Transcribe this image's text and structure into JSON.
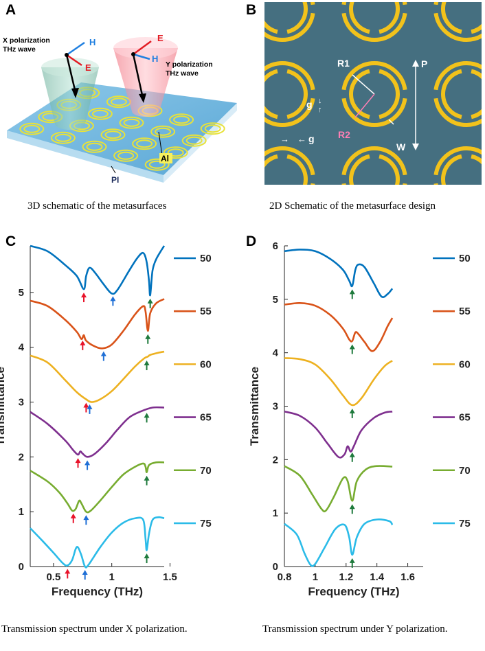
{
  "panels": {
    "A": {
      "letter": "A",
      "x_wave_label_line1": "X polarization",
      "x_wave_label_line2": "THz wave",
      "y_wave_label_line1": "Y polarization",
      "y_wave_label_line2": "THz wave",
      "h_label": "H",
      "e_label": "E",
      "al_label": "Al",
      "pi_label": "PI",
      "caption": "3D schematic of the metasurfaces"
    },
    "B": {
      "letter": "B",
      "r1_label": "R1",
      "r2_label": "R2",
      "p_label": "P",
      "g_label": "g",
      "w_label": "W",
      "caption": "2D Schematic of the metasurface design"
    },
    "C": {
      "letter": "C",
      "caption": "Transmission spectrum under X polarization."
    },
    "D": {
      "letter": "D",
      "caption": "Transmission spectrum under Y polarization."
    }
  },
  "colors": {
    "s50": "#0072bd",
    "s55": "#d95319",
    "s60": "#edb120",
    "s65": "#7e2f8e",
    "s70": "#77ac30",
    "s75": "#2bbbe8",
    "arrow_red": "#e8132a",
    "arrow_blue": "#1f6fd6",
    "arrow_green": "#1e7a3c",
    "metasurface_bg": "#456f80",
    "ring": "#f2c21b"
  },
  "chart_data": [
    {
      "type": "line",
      "panel": "C",
      "xlabel": "Frequency (THz)",
      "ylabel": "Transmittance",
      "xlim": [
        0.3,
        1.45
      ],
      "ylim": [
        0,
        5.85
      ],
      "xticks": [
        0.5,
        1,
        1.5
      ],
      "xtick_labels": [
        "0.5",
        "1",
        "1.5"
      ],
      "yticks": [
        0,
        1,
        2,
        3,
        4,
        5
      ],
      "ytick_labels": [
        "0",
        "1",
        "2",
        "3",
        "4",
        "5"
      ],
      "series": [
        {
          "name": "50",
          "color": "#0072bd",
          "points": [
            [
              0.3,
              5.85
            ],
            [
              0.45,
              5.75
            ],
            [
              0.6,
              5.5
            ],
            [
              0.7,
              5.3
            ],
            [
              0.76,
              5.06
            ],
            [
              0.78,
              5.3
            ],
            [
              0.81,
              5.45
            ],
            [
              0.86,
              5.35
            ],
            [
              0.93,
              5.15
            ],
            [
              1.0,
              4.98
            ],
            [
              1.05,
              5.05
            ],
            [
              1.15,
              5.4
            ],
            [
              1.22,
              5.63
            ],
            [
              1.27,
              5.72
            ],
            [
              1.3,
              5.55
            ],
            [
              1.32,
              5.2
            ],
            [
              1.33,
              4.95
            ],
            [
              1.35,
              5.4
            ],
            [
              1.38,
              5.6
            ],
            [
              1.42,
              5.75
            ],
            [
              1.45,
              5.85
            ]
          ],
          "arrows": [
            {
              "x": 0.76,
              "color": "red"
            },
            {
              "x": 1.01,
              "color": "blue"
            },
            {
              "x": 1.33,
              "color": "green"
            }
          ]
        },
        {
          "name": "55",
          "color": "#d95319",
          "points": [
            [
              0.3,
              4.85
            ],
            [
              0.45,
              4.75
            ],
            [
              0.6,
              4.5
            ],
            [
              0.7,
              4.28
            ],
            [
              0.74,
              4.15
            ],
            [
              0.76,
              4.22
            ],
            [
              0.78,
              4.12
            ],
            [
              0.85,
              4.02
            ],
            [
              0.92,
              3.98
            ],
            [
              1.0,
              4.05
            ],
            [
              1.1,
              4.3
            ],
            [
              1.2,
              4.6
            ],
            [
              1.27,
              4.75
            ],
            [
              1.29,
              4.65
            ],
            [
              1.31,
              4.3
            ],
            [
              1.33,
              4.62
            ],
            [
              1.38,
              4.8
            ],
            [
              1.45,
              4.88
            ]
          ],
          "arrows": [
            {
              "x": 0.75,
              "color": "red"
            },
            {
              "x": 0.93,
              "color": "blue"
            },
            {
              "x": 1.31,
              "color": "green"
            }
          ]
        },
        {
          "name": "60",
          "color": "#edb120",
          "points": [
            [
              0.3,
              3.85
            ],
            [
              0.45,
              3.72
            ],
            [
              0.6,
              3.4
            ],
            [
              0.7,
              3.18
            ],
            [
              0.78,
              3.05
            ],
            [
              0.83,
              3.0
            ],
            [
              0.9,
              3.05
            ],
            [
              1.0,
              3.2
            ],
            [
              1.1,
              3.42
            ],
            [
              1.2,
              3.65
            ],
            [
              1.28,
              3.8
            ],
            [
              1.31,
              3.83
            ],
            [
              1.33,
              3.86
            ],
            [
              1.4,
              3.9
            ],
            [
              1.45,
              3.92
            ]
          ],
          "arrows": [
            {
              "x": 0.78,
              "color": "red"
            },
            {
              "x": 0.81,
              "color": "blue"
            },
            {
              "x": 1.3,
              "color": "green"
            }
          ]
        },
        {
          "name": "65",
          "color": "#7e2f8e",
          "points": [
            [
              0.3,
              2.82
            ],
            [
              0.45,
              2.6
            ],
            [
              0.6,
              2.3
            ],
            [
              0.67,
              2.12
            ],
            [
              0.71,
              2.04
            ],
            [
              0.73,
              2.1
            ],
            [
              0.75,
              2.06
            ],
            [
              0.79,
              2.0
            ],
            [
              0.85,
              2.05
            ],
            [
              0.95,
              2.25
            ],
            [
              1.05,
              2.5
            ],
            [
              1.15,
              2.72
            ],
            [
              1.25,
              2.83
            ],
            [
              1.35,
              2.9
            ],
            [
              1.45,
              2.9
            ]
          ],
          "arrows": [
            {
              "x": 0.71,
              "color": "red"
            },
            {
              "x": 0.79,
              "color": "blue"
            },
            {
              "x": 1.3,
              "color": "green"
            }
          ]
        },
        {
          "name": "70",
          "color": "#77ac30",
          "points": [
            [
              0.3,
              1.75
            ],
            [
              0.45,
              1.55
            ],
            [
              0.55,
              1.35
            ],
            [
              0.62,
              1.15
            ],
            [
              0.66,
              1.02
            ],
            [
              0.69,
              1.05
            ],
            [
              0.72,
              1.2
            ],
            [
              0.74,
              1.15
            ],
            [
              0.78,
              1.0
            ],
            [
              0.82,
              1.02
            ],
            [
              0.9,
              1.2
            ],
            [
              1.0,
              1.45
            ],
            [
              1.1,
              1.68
            ],
            [
              1.2,
              1.82
            ],
            [
              1.27,
              1.88
            ],
            [
              1.29,
              1.82
            ],
            [
              1.3,
              1.72
            ],
            [
              1.32,
              1.85
            ],
            [
              1.38,
              1.9
            ],
            [
              1.45,
              1.9
            ]
          ],
          "arrows": [
            {
              "x": 0.67,
              "color": "red"
            },
            {
              "x": 0.78,
              "color": "blue"
            },
            {
              "x": 1.3,
              "color": "green"
            }
          ]
        },
        {
          "name": "75",
          "color": "#2bbbe8",
          "points": [
            [
              0.3,
              0.7
            ],
            [
              0.4,
              0.48
            ],
            [
              0.5,
              0.25
            ],
            [
              0.58,
              0.06
            ],
            [
              0.62,
              0.02
            ],
            [
              0.66,
              0.12
            ],
            [
              0.69,
              0.32
            ],
            [
              0.71,
              0.35
            ],
            [
              0.74,
              0.2
            ],
            [
              0.77,
              0.0
            ],
            [
              0.8,
              0.03
            ],
            [
              0.9,
              0.35
            ],
            [
              1.0,
              0.62
            ],
            [
              1.1,
              0.8
            ],
            [
              1.2,
              0.88
            ],
            [
              1.27,
              0.85
            ],
            [
              1.29,
              0.5
            ],
            [
              1.3,
              0.3
            ],
            [
              1.32,
              0.6
            ],
            [
              1.35,
              0.85
            ],
            [
              1.4,
              0.9
            ],
            [
              1.45,
              0.88
            ]
          ],
          "arrows": [
            {
              "x": 0.62,
              "color": "red"
            },
            {
              "x": 0.77,
              "color": "blue"
            },
            {
              "x": 1.3,
              "color": "green"
            }
          ]
        }
      ]
    },
    {
      "type": "line",
      "panel": "D",
      "xlabel": "Frequency (THz)",
      "ylabel": "Transmittance",
      "xlim": [
        0.8,
        1.7
      ],
      "ylim": [
        0,
        6
      ],
      "xticks": [
        0.8,
        1.0,
        1.2,
        1.4,
        1.6
      ],
      "xtick_labels": [
        "0.8",
        "1",
        "1.2",
        "1.4",
        "1.6"
      ],
      "yticks": [
        0,
        1,
        2,
        3,
        4,
        5,
        6
      ],
      "ytick_labels": [
        "0",
        "1",
        "2",
        "3",
        "4",
        "5",
        "6"
      ],
      "series": [
        {
          "name": "50",
          "color": "#0072bd",
          "points": [
            [
              0.8,
              5.9
            ],
            [
              0.9,
              5.93
            ],
            [
              1.0,
              5.9
            ],
            [
              1.1,
              5.75
            ],
            [
              1.18,
              5.55
            ],
            [
              1.22,
              5.35
            ],
            [
              1.24,
              5.25
            ],
            [
              1.26,
              5.55
            ],
            [
              1.28,
              5.65
            ],
            [
              1.32,
              5.6
            ],
            [
              1.38,
              5.3
            ],
            [
              1.43,
              5.05
            ],
            [
              1.47,
              5.1
            ],
            [
              1.5,
              5.2
            ]
          ],
          "arrows": [
            {
              "x": 1.24,
              "color": "green"
            }
          ]
        },
        {
          "name": "55",
          "color": "#d95319",
          "points": [
            [
              0.8,
              4.9
            ],
            [
              0.9,
              4.93
            ],
            [
              1.0,
              4.88
            ],
            [
              1.1,
              4.7
            ],
            [
              1.18,
              4.45
            ],
            [
              1.22,
              4.25
            ],
            [
              1.24,
              4.22
            ],
            [
              1.26,
              4.38
            ],
            [
              1.28,
              4.35
            ],
            [
              1.32,
              4.2
            ],
            [
              1.37,
              4.03
            ],
            [
              1.42,
              4.2
            ],
            [
              1.47,
              4.5
            ],
            [
              1.5,
              4.65
            ]
          ],
          "arrows": [
            {
              "x": 1.24,
              "color": "green"
            }
          ]
        },
        {
          "name": "60",
          "color": "#edb120",
          "points": [
            [
              0.8,
              3.9
            ],
            [
              0.9,
              3.88
            ],
            [
              1.0,
              3.78
            ],
            [
              1.1,
              3.5
            ],
            [
              1.18,
              3.2
            ],
            [
              1.24,
              3.02
            ],
            [
              1.3,
              3.15
            ],
            [
              1.38,
              3.5
            ],
            [
              1.45,
              3.75
            ],
            [
              1.5,
              3.85
            ]
          ],
          "arrows": [
            {
              "x": 1.24,
              "color": "green"
            }
          ]
        },
        {
          "name": "65",
          "color": "#7e2f8e",
          "points": [
            [
              0.8,
              2.9
            ],
            [
              0.9,
              2.82
            ],
            [
              1.0,
              2.6
            ],
            [
              1.08,
              2.3
            ],
            [
              1.15,
              2.05
            ],
            [
              1.19,
              2.1
            ],
            [
              1.21,
              2.25
            ],
            [
              1.23,
              2.15
            ],
            [
              1.25,
              2.25
            ],
            [
              1.3,
              2.55
            ],
            [
              1.38,
              2.78
            ],
            [
              1.45,
              2.88
            ],
            [
              1.5,
              2.9
            ]
          ],
          "arrows": [
            {
              "x": 1.24,
              "color": "green"
            }
          ]
        },
        {
          "name": "70",
          "color": "#77ac30",
          "points": [
            [
              0.8,
              1.88
            ],
            [
              0.9,
              1.7
            ],
            [
              0.98,
              1.35
            ],
            [
              1.04,
              1.08
            ],
            [
              1.07,
              1.05
            ],
            [
              1.12,
              1.3
            ],
            [
              1.18,
              1.65
            ],
            [
              1.21,
              1.6
            ],
            [
              1.24,
              1.23
            ],
            [
              1.27,
              1.6
            ],
            [
              1.33,
              1.82
            ],
            [
              1.4,
              1.88
            ],
            [
              1.5,
              1.87
            ]
          ],
          "arrows": [
            {
              "x": 1.24,
              "color": "green"
            }
          ]
        },
        {
          "name": "75",
          "color": "#2bbbe8",
          "points": [
            [
              0.8,
              0.8
            ],
            [
              0.88,
              0.6
            ],
            [
              0.93,
              0.25
            ],
            [
              0.97,
              0.03
            ],
            [
              1.0,
              0.05
            ],
            [
              1.06,
              0.35
            ],
            [
              1.13,
              0.7
            ],
            [
              1.19,
              0.78
            ],
            [
              1.22,
              0.55
            ],
            [
              1.24,
              0.22
            ],
            [
              1.27,
              0.55
            ],
            [
              1.32,
              0.8
            ],
            [
              1.4,
              0.88
            ],
            [
              1.48,
              0.85
            ],
            [
              1.5,
              0.78
            ]
          ],
          "arrows": [
            {
              "x": 1.24,
              "color": "green"
            }
          ]
        }
      ]
    }
  ]
}
